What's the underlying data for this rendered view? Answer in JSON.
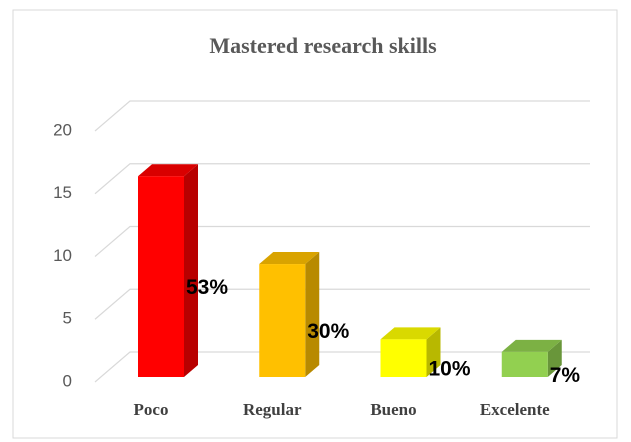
{
  "chart_data": {
    "type": "bar3d",
    "title": "Mastered research skills",
    "categories": [
      "Poco",
      "Regular",
      "Bueno",
      "Excelente"
    ],
    "values": [
      16,
      9,
      3,
      2
    ],
    "annotations": [
      "53%",
      "30%",
      "10%",
      "7%"
    ],
    "colors": [
      "#ff0000",
      "#ffc000",
      "#ffff00",
      "#92d050"
    ],
    "ylim": [
      0,
      20
    ],
    "yticks": [
      0,
      5,
      10,
      15,
      20
    ],
    "grid": true
  }
}
